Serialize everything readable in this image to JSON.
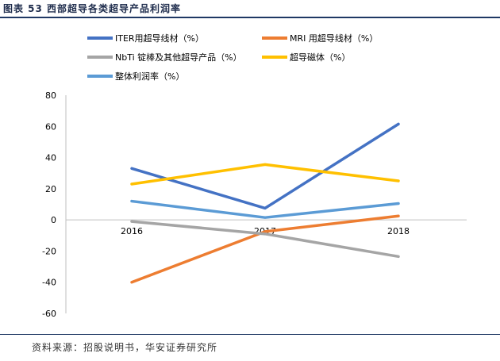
{
  "figure_title": "图表 53 西部超导各类超导产品利润率",
  "source_note": "资料来源：招股说明书，华安证券研究所",
  "chart_data": {
    "type": "line",
    "title": "",
    "xlabel": "",
    "ylabel": "",
    "categories": [
      "2016",
      "2017",
      "2018"
    ],
    "yticks": [
      80,
      60,
      40,
      20,
      0,
      -20,
      -40,
      -60
    ],
    "ylim": [
      -60,
      80
    ],
    "grid": false,
    "legend_position": "top",
    "series": [
      {
        "name": "ITER用超导线材（%）",
        "color": "#4472c4",
        "values": [
          33,
          7.5,
          61.5
        ]
      },
      {
        "name": "MRI 用超导线材（%）",
        "color": "#ed7d31",
        "values": [
          -40,
          -7.5,
          2.5
        ]
      },
      {
        "name": "NbTi 锭棒及其他超导产品（%）",
        "color": "#a5a5a5",
        "values": [
          -1,
          -9,
          -23.5
        ]
      },
      {
        "name": "超导磁体（%）",
        "color": "#ffc000",
        "values": [
          23,
          35.5,
          25
        ]
      },
      {
        "name": "整体利润率（%）",
        "color": "#5b9bd5",
        "values": [
          12,
          1.5,
          10.5
        ]
      }
    ]
  }
}
